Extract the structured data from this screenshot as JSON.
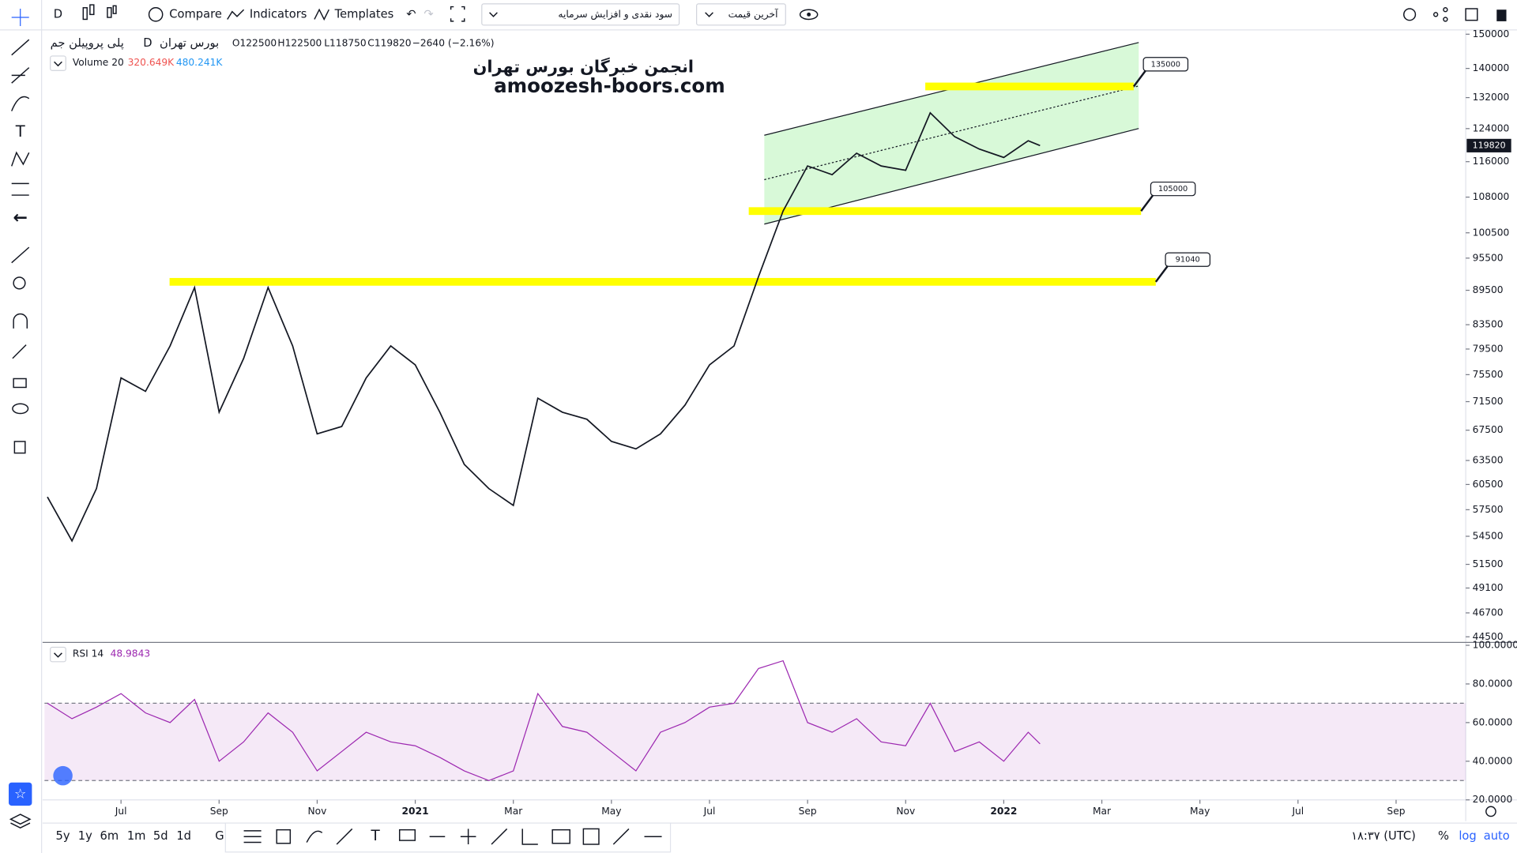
{
  "toolbar": {
    "interval": "D",
    "compare": "Compare",
    "indicators": "Indicators",
    "templates": "Templates",
    "dividends": "سود نقدی و افزایش سرمایه",
    "price_type": "آخرین قیمت"
  },
  "legend": {
    "symbol": "پلی پروپیلن جم",
    "interval": "D",
    "exchange": "بورس تهران",
    "open": "O122500",
    "high": "H122500",
    "low": "L118750",
    "close": "C119820",
    "change": "−2640 (−2.16%)",
    "volume": "Volume 20",
    "volume_a": "320.649K",
    "volume_b": "480.241K",
    "rsi": "RSI 14",
    "rsi_value": "48.9843"
  },
  "watermark": {
    "title": "انجمن خبرگان بورس تهران",
    "site": "amoozesh-boors.com"
  },
  "bottom_bar": {
    "ranges": [
      "5y",
      "1y",
      "6m",
      "1m",
      "5d",
      "1d",
      "G"
    ],
    "time": "۱۸:۳۷ (UTC)",
    "percent": "%",
    "log": "log",
    "auto": "auto"
  },
  "chart_data": [
    {
      "type": "line",
      "color": "#131722",
      "log_scale": true,
      "x": [
        -1.5,
        -1,
        -0.5,
        0,
        0.5,
        1,
        1.5,
        2,
        2.5,
        3,
        3.5,
        4,
        4.5,
        5,
        5.5,
        6,
        6.5,
        7,
        7.5,
        8,
        8.5,
        9,
        9.5,
        10,
        10.5,
        11,
        11.5,
        12,
        12.5,
        13,
        13.5,
        14,
        14.5,
        15,
        15.5,
        16,
        16.5,
        17,
        17.5,
        18,
        18.5,
        18.74
      ],
      "values": [
        59000,
        54000,
        60000,
        75000,
        73000,
        80000,
        90000,
        70000,
        78000,
        90000,
        80000,
        67000,
        68000,
        75000,
        80000,
        77000,
        70000,
        63000,
        60000,
        58000,
        72000,
        70000,
        69000,
        66000,
        65000,
        67000,
        71000,
        77000,
        80000,
        92000,
        105000,
        115000,
        113000,
        118000,
        115000,
        114000,
        128000,
        122000,
        119000,
        117000,
        121000,
        119820
      ],
      "xlim": [
        -1.56,
        27.42
      ],
      "xticks": [
        {
          "value": 0,
          "label": "Jul"
        },
        {
          "value": 2,
          "label": "Sep"
        },
        {
          "value": 4,
          "label": "Nov"
        },
        {
          "value": 6,
          "label": "2021"
        },
        {
          "value": 8,
          "label": "Mar"
        },
        {
          "value": 10,
          "label": "May"
        },
        {
          "value": 12,
          "label": "Jul"
        },
        {
          "value": 14,
          "label": "Sep"
        },
        {
          "value": 16,
          "label": "Nov"
        },
        {
          "value": 18,
          "label": "2022"
        },
        {
          "value": 20,
          "label": "Mar"
        },
        {
          "value": 22,
          "label": "May"
        },
        {
          "value": 24,
          "label": "Jul"
        },
        {
          "value": 26,
          "label": "Sep"
        }
      ],
      "ylim": [
        44000,
        151000
      ],
      "yticks": [
        150000,
        140000,
        132000,
        124000,
        116000,
        108000,
        100500,
        95500,
        89500,
        83500,
        79500,
        75500,
        71500,
        67500,
        63500,
        60500,
        57500,
        54500,
        51500,
        49100,
        46700,
        44500
      ],
      "levels": [
        {
          "value": 135000,
          "xrange": [
            16.4,
            20.65
          ]
        },
        {
          "value": 105000,
          "xrange": [
            12.8,
            20.8
          ]
        },
        {
          "value": 91040,
          "xrange": [
            0.99,
            21.1
          ]
        }
      ],
      "level_color": "#ffff00"
    },
    {
      "type": "line",
      "color": "#9c27b0",
      "x": [
        -1.5,
        -1,
        -0.5,
        0,
        0.5,
        1,
        1.5,
        2,
        2.5,
        3,
        3.5,
        4,
        4.5,
        5,
        5.5,
        6,
        6.5,
        7,
        7.5,
        8,
        8.5,
        9,
        9.5,
        10,
        10.5,
        11,
        11.5,
        12,
        12.5,
        13,
        13.5,
        14,
        14.5,
        15,
        15.5,
        16,
        16.5,
        17,
        17.5,
        18,
        18.5,
        18.74
      ],
      "values": [
        70,
        62,
        68,
        75,
        65,
        60,
        72,
        40,
        50,
        65,
        55,
        35,
        45,
        55,
        50,
        48,
        42,
        35,
        30,
        35,
        75,
        58,
        55,
        45,
        35,
        55,
        60,
        68,
        70,
        88,
        92,
        60,
        55,
        62,
        50,
        48,
        70,
        45,
        50,
        40,
        55,
        48.9843
      ],
      "xlim": [
        -1.56,
        27.42
      ],
      "ylim": [
        20,
        101.5
      ],
      "yticks": [
        {
          "value": 100,
          "label": "100.0000"
        },
        {
          "value": 80,
          "label": "80.0000"
        },
        {
          "value": 60,
          "label": "60.0000"
        },
        {
          "value": 40,
          "label": "40.0000"
        },
        {
          "value": 20,
          "label": "20.0000"
        }
      ],
      "band": [
        30,
        70
      ]
    }
  ]
}
